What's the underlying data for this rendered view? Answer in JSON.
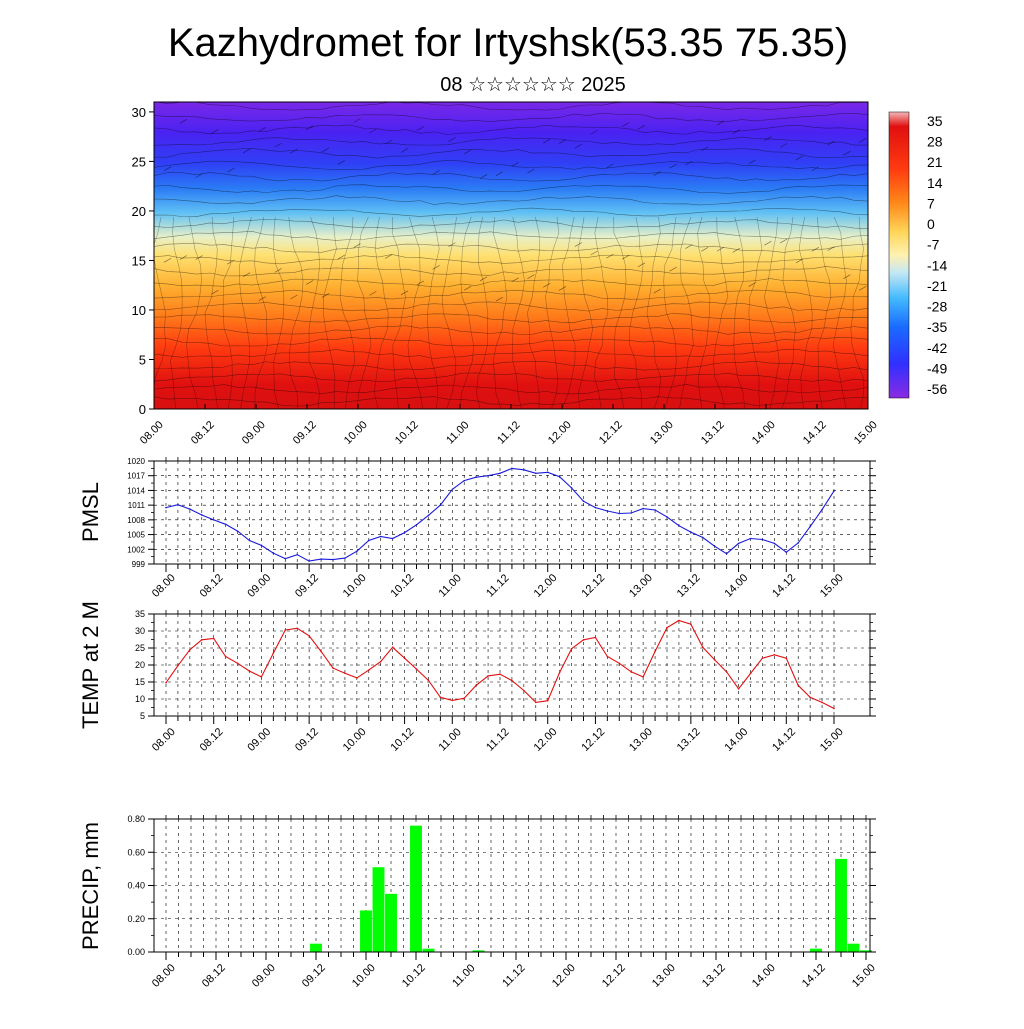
{
  "header": {
    "title": "Kazhydromet for Irtyshsk(53.35 75.35)",
    "subtitle": "08 ☆☆☆☆☆☆ 2025"
  },
  "colors": {
    "pmsl_line": "#1a1adc",
    "temp_line": "#e01010",
    "precip_bar": "#00ff00",
    "cross_section_palette": [
      "#8a2be2",
      "#5a1ff0",
      "#3030ff",
      "#1a6cff",
      "#22a8ff",
      "#66ccff",
      "#c6e8f2",
      "#fff1b0",
      "#ffd65a",
      "#ffb030",
      "#ff7a1a",
      "#ff3b10",
      "#e01010",
      "#b81010",
      "#f3a0a0"
    ]
  },
  "time_ticks": [
    "08.00",
    "08.12",
    "09.00",
    "09.12",
    "10.00",
    "10.12",
    "11.00",
    "11.12",
    "12.00",
    "12.12",
    "13.00",
    "13.12",
    "14.00",
    "14.12",
    "15.00"
  ],
  "chart_data": [
    {
      "type": "heatmap",
      "title": "Kazhydromet for Irtyshsk(53.35 75.35)",
      "subtitle": "08 ☆☆☆☆☆☆ 2025",
      "x_ticks": [
        "08.00",
        "08.12",
        "09.00",
        "09.12",
        "10.00",
        "10.12",
        "11.00",
        "11.12",
        "12.00",
        "12.12",
        "13.00",
        "13.12",
        "14.00",
        "14.12",
        "15.00"
      ],
      "y_ticks": [
        0,
        5,
        10,
        15,
        20,
        25,
        30
      ],
      "ylim": [
        0,
        31
      ],
      "colorbar_labels": [
        "35",
        "28",
        "21",
        "14",
        "7",
        "0",
        "-7",
        "-14",
        "-21",
        "-28",
        "-35",
        "-42",
        "-49",
        "-56"
      ],
      "overlay": "wind barbs"
    },
    {
      "type": "line",
      "ylabel": "PMSL",
      "ylim": [
        999,
        1020
      ],
      "y_ticks": [
        999,
        1002,
        1005,
        1008,
        1011,
        1014,
        1017,
        1020
      ],
      "x_ticks": [
        "08.00",
        "08.12",
        "09.00",
        "09.12",
        "10.00",
        "10.12",
        "11.00",
        "11.12",
        "12.00",
        "12.12",
        "13.00",
        "13.12",
        "14.00",
        "14.12",
        "15.00"
      ],
      "x": [
        0,
        1,
        2,
        3,
        4,
        5,
        6,
        7,
        8,
        9,
        10,
        11,
        12,
        13,
        14,
        15,
        16,
        17,
        18,
        19,
        20,
        21,
        22,
        23,
        24,
        25,
        26,
        27,
        28,
        29,
        30,
        31,
        32,
        33,
        34,
        35,
        36,
        37,
        38,
        39,
        40,
        41,
        42,
        43,
        44,
        45,
        46,
        47,
        48,
        49,
        50,
        51,
        52,
        53,
        54,
        55,
        56
      ],
      "series": [
        {
          "values": [
            1010.5,
            1011.1,
            1010.2,
            1009.0,
            1008.0,
            1007.1,
            1005.7,
            1003.8,
            1002.8,
            1001.2,
            1000.1,
            1000.9,
            999.6,
            1000.0,
            999.9,
            1000.2,
            1001.6,
            1003.8,
            1004.6,
            1004.2,
            1005.4,
            1007.0,
            1008.9,
            1011.0,
            1014.2,
            1016.0,
            1016.7,
            1017.0,
            1017.5,
            1018.5,
            1018.2,
            1017.5,
            1017.7,
            1016.8,
            1014.5,
            1011.8,
            1010.5,
            1009.8,
            1009.3,
            1009.4,
            1010.3,
            1010.0,
            1008.6,
            1006.8,
            1005.5,
            1004.4,
            1002.6,
            1001.1,
            1003.2,
            1004.2,
            1004.0,
            1003.2,
            1001.4,
            1003.3,
            1006.6,
            1010.1,
            1013.9
          ]
        }
      ]
    },
    {
      "type": "line",
      "ylabel": "TEMP at 2 M",
      "ylim": [
        5,
        35
      ],
      "y_ticks": [
        5,
        10,
        15,
        20,
        25,
        30,
        35
      ],
      "x_ticks": [
        "08.00",
        "08.12",
        "09.00",
        "09.12",
        "10.00",
        "10.12",
        "11.00",
        "11.12",
        "12.00",
        "12.12",
        "13.00",
        "13.12",
        "14.00",
        "14.12",
        "15.00"
      ],
      "x": [
        0,
        1,
        2,
        3,
        4,
        5,
        6,
        7,
        8,
        9,
        10,
        11,
        12,
        13,
        14,
        15,
        16,
        17,
        18,
        19,
        20,
        21,
        22,
        23,
        24,
        25,
        26,
        27,
        28,
        29,
        30,
        31,
        32,
        33,
        34,
        35,
        36,
        37,
        38,
        39,
        40,
        41,
        42,
        43,
        44,
        45,
        46,
        47,
        48,
        49,
        50,
        51,
        52,
        53,
        54,
        55,
        56
      ],
      "series": [
        {
          "values": [
            14.8,
            19.8,
            24.5,
            27.4,
            27.8,
            22.5,
            20.5,
            18.2,
            16.5,
            23.5,
            30.3,
            30.8,
            28.6,
            24.0,
            19.1,
            17.6,
            16.2,
            18.5,
            21.0,
            25.2,
            22.0,
            18.8,
            15.5,
            10.5,
            9.6,
            10.2,
            14.0,
            16.8,
            17.3,
            15.4,
            12.5,
            9.0,
            9.5,
            17.8,
            24.8,
            27.4,
            28.1,
            22.5,
            20.5,
            18.0,
            16.5,
            24.0,
            31.0,
            33.1,
            32.0,
            25.2,
            21.5,
            18.0,
            13.0,
            17.5,
            22.0,
            23.0,
            22.0,
            14.0,
            10.5,
            9.0,
            7.2
          ]
        }
      ]
    },
    {
      "type": "bar",
      "ylabel": "PRECIP, mm",
      "ylim": [
        0,
        0.8
      ],
      "y_ticks": [
        "0.00",
        "0.20",
        "0.40",
        "0.60",
        "0.80"
      ],
      "x_ticks": [
        "08.00",
        "08.12",
        "09.00",
        "09.12",
        "10.00",
        "10.12",
        "11.00",
        "11.12",
        "12.00",
        "12.12",
        "13.00",
        "13.12",
        "14.00",
        "14.12",
        "15.00"
      ],
      "x": [
        0,
        1,
        2,
        3,
        4,
        5,
        6,
        7,
        8,
        9,
        10,
        11,
        12,
        13,
        14,
        15,
        16,
        17,
        18,
        19,
        20,
        21,
        22,
        23,
        24,
        25,
        26,
        27,
        28,
        29,
        30,
        31,
        32,
        33,
        34,
        35,
        36,
        37,
        38,
        39,
        40,
        41,
        42,
        43,
        44,
        45,
        46,
        47,
        48,
        49,
        50,
        51,
        52,
        53,
        54,
        55,
        56
      ],
      "values": [
        0,
        0,
        0,
        0,
        0,
        0,
        0,
        0,
        0,
        0,
        0,
        0,
        0.05,
        0,
        0,
        0,
        0.25,
        0.51,
        0.35,
        0,
        0.76,
        0.02,
        0,
        0,
        0,
        0.01,
        0,
        0,
        0,
        0,
        0,
        0,
        0,
        0,
        0,
        0,
        0,
        0,
        0,
        0,
        0,
        0,
        0,
        0,
        0,
        0,
        0,
        0,
        0,
        0,
        0,
        0,
        0.02,
        0,
        0.56,
        0.05,
        0.01
      ]
    }
  ]
}
